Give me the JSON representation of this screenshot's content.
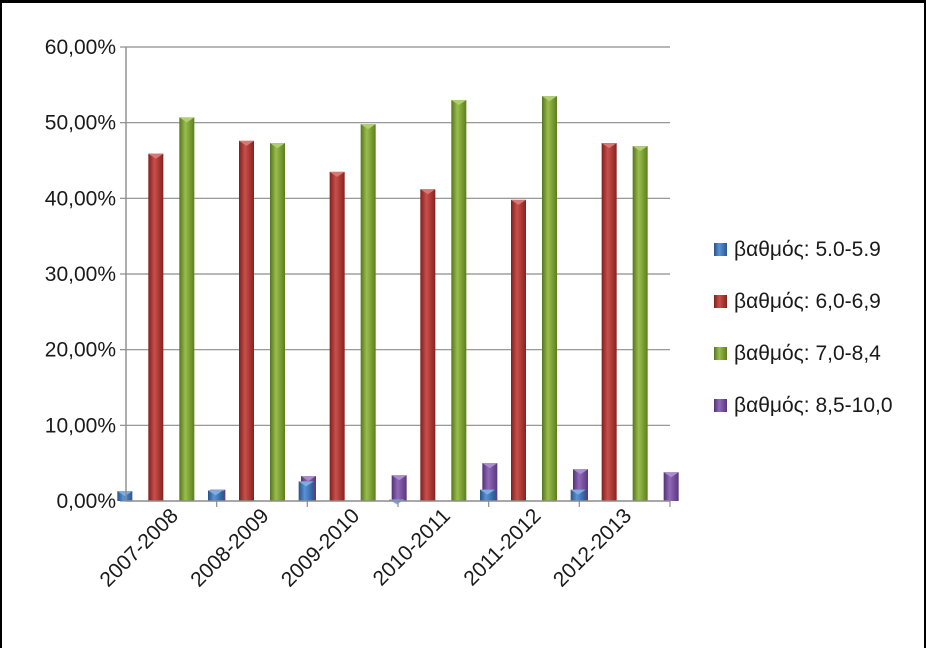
{
  "chart_data": {
    "type": "bar",
    "categories": [
      "2007-2008",
      "2008-2009",
      "2009-2010",
      "2010-2011",
      "2011-2012",
      "2012-2013"
    ],
    "series": [
      {
        "name": "βαθμός: 5.0-5.9",
        "color": "#3d7fd0",
        "values": [
          1.3,
          1.4,
          2.6,
          0.2,
          1.5,
          1.5
        ]
      },
      {
        "name": "βαθμός: 6,0-6,9",
        "color": "#c0302b",
        "values": [
          45.9,
          47.6,
          43.5,
          41.2,
          39.8,
          47.3
        ]
      },
      {
        "name": "βαθμός: 7,0-8,4",
        "color": "#86b32c",
        "values": [
          50.7,
          47.3,
          49.8,
          53.0,
          53.5,
          46.9
        ]
      },
      {
        "name": "βαθμός: 8,5-10,0",
        "color": "#7d4fb0",
        "values": [
          1.5,
          3.3,
          3.4,
          5.0,
          4.2,
          3.8
        ]
      }
    ],
    "ylim": [
      0,
      60
    ],
    "yticks": [
      0,
      10,
      20,
      30,
      40,
      50,
      60
    ],
    "ytick_labels": [
      "0,00%",
      "10,00%",
      "20,00%",
      "30,00%",
      "40,00%",
      "50,00%",
      "60,00%"
    ],
    "grid": true,
    "legend_position": "right"
  }
}
